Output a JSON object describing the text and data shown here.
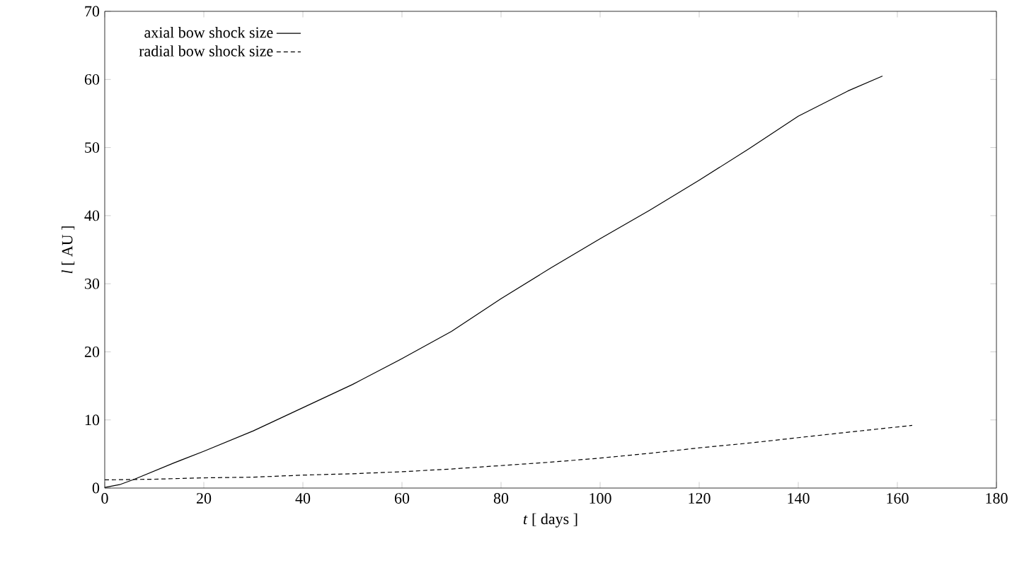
{
  "chart_data": {
    "type": "line",
    "xlabel": "*t* [ days ]",
    "ylabel": "*l* [ AU ]",
    "xlim": [
      0,
      180
    ],
    "ylim": [
      0,
      70
    ],
    "xticks": [
      0,
      20,
      40,
      60,
      80,
      100,
      120,
      140,
      160,
      180
    ],
    "yticks": [
      0,
      10,
      20,
      30,
      40,
      50,
      60,
      70
    ],
    "grid": false,
    "legend": "top left",
    "marker": "none",
    "series": [
      {
        "name": "axial bow shock size",
        "color": "#000000",
        "line_style": "solid",
        "x": [
          0,
          3,
          6,
          10,
          14,
          20,
          30,
          40,
          50,
          60,
          70,
          80,
          90,
          100,
          110,
          120,
          130,
          140,
          150,
          157
        ],
        "values": [
          0.1,
          0.5,
          1.3,
          2.5,
          3.7,
          5.4,
          8.4,
          11.8,
          15.2,
          19,
          23,
          27.8,
          32.3,
          36.6,
          40.8,
          45.2,
          49.8,
          54.6,
          58.3,
          60.5
        ]
      },
      {
        "name": "radial bow shock size",
        "color": "#000000",
        "line_style": "dashed",
        "x": [
          0,
          10,
          20,
          30,
          40,
          50,
          60,
          70,
          80,
          90,
          100,
          110,
          120,
          130,
          140,
          150,
          163
        ],
        "values": [
          1.2,
          1.3,
          1.5,
          1.6,
          1.9,
          2.1,
          2.4,
          2.8,
          3.3,
          3.8,
          4.4,
          5.1,
          5.9,
          6.6,
          7.4,
          8.2,
          9.2
        ]
      }
    ]
  }
}
